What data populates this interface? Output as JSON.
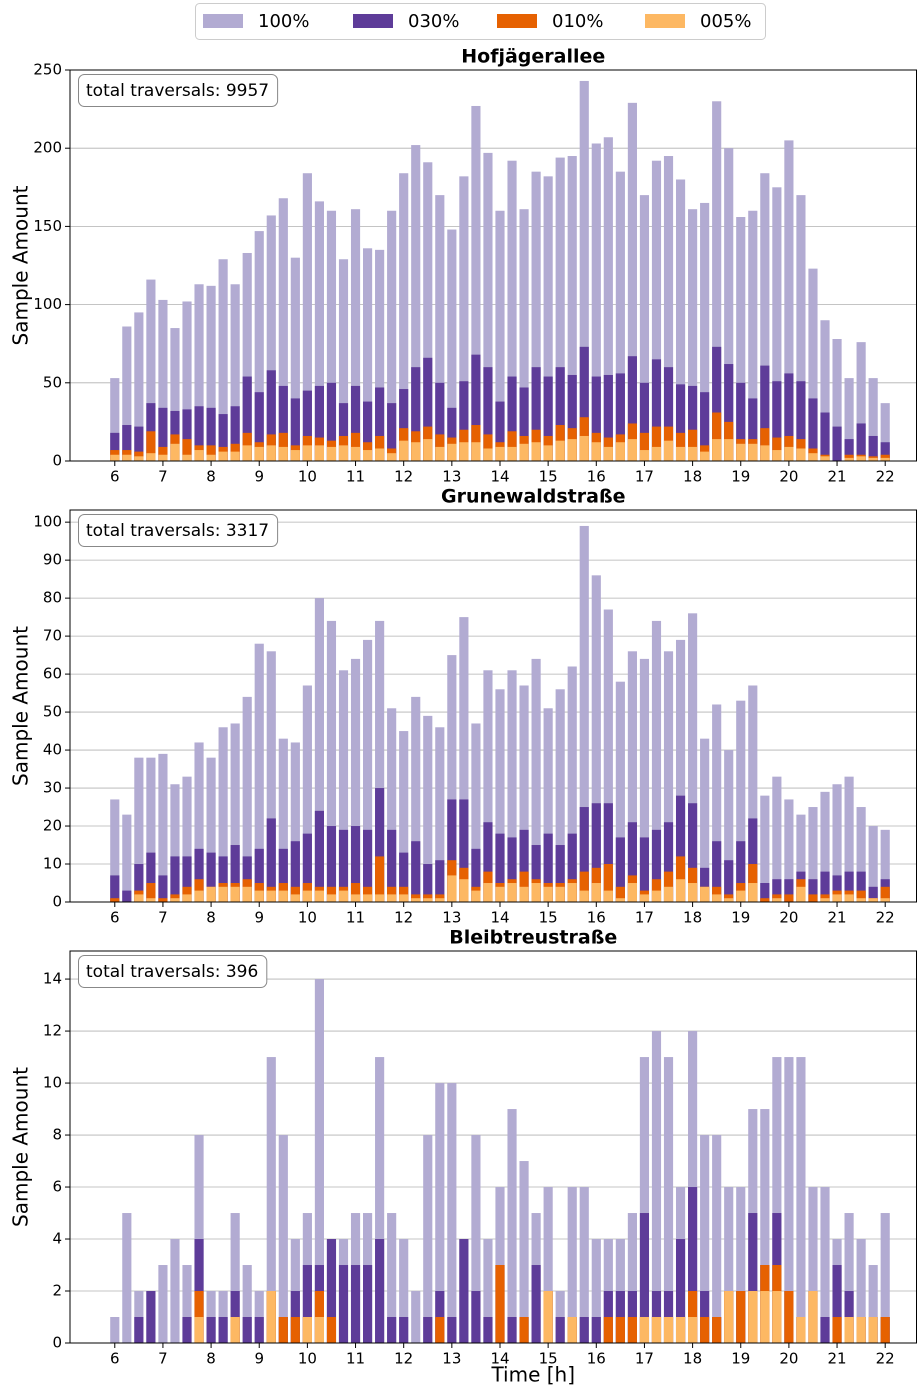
{
  "legend_loc": "upper center",
  "chart_data": [
    {
      "type": "bar",
      "title": "Hofjägerallee",
      "ylabel": "Sample Amount",
      "annotation": "total traversals: 9957",
      "x": [
        6,
        6.25,
        6.5,
        6.75,
        7,
        7.25,
        7.5,
        7.75,
        8,
        8.25,
        8.5,
        8.75,
        9,
        9.25,
        9.5,
        9.75,
        10,
        10.25,
        10.5,
        10.75,
        11,
        11.25,
        11.5,
        11.75,
        12,
        12.25,
        12.5,
        12.75,
        13,
        13.25,
        13.5,
        13.75,
        14,
        14.25,
        14.5,
        14.75,
        15,
        15.25,
        15.5,
        15.75,
        16,
        16.25,
        16.5,
        16.75,
        17,
        17.25,
        17.5,
        17.75,
        18,
        18.25,
        18.5,
        18.75,
        19,
        19.25,
        19.5,
        19.75,
        20,
        20.25,
        20.5,
        20.75,
        21,
        21.25,
        21.5,
        21.75,
        22
      ],
      "xlim": [
        5.07,
        22.65
      ],
      "xticks": [
        6,
        7,
        8,
        9,
        10,
        11,
        12,
        13,
        14,
        15,
        16,
        17,
        18,
        19,
        20,
        21,
        22
      ],
      "ylim": [
        0,
        250
      ],
      "yticks": [
        0,
        50,
        100,
        150,
        200,
        250
      ],
      "grid": true,
      "series": [
        {
          "name": "100%",
          "color": "#b2abd2",
          "values": [
            53,
            86,
            95,
            116,
            103,
            85,
            102,
            113,
            112,
            129,
            113,
            133,
            147,
            157,
            168,
            130,
            184,
            166,
            160,
            129,
            161,
            136,
            135,
            160,
            184,
            202,
            191,
            170,
            148,
            182,
            227,
            197,
            160,
            192,
            161,
            185,
            182,
            194,
            195,
            243,
            203,
            207,
            185,
            229,
            170,
            192,
            195,
            180,
            161,
            165,
            230,
            200,
            156,
            160,
            184,
            175,
            205,
            170,
            123,
            90,
            78,
            53,
            76,
            53,
            37
          ]
        },
        {
          "name": "030%",
          "color": "#5e3c99",
          "values": [
            18,
            23,
            22,
            37,
            34,
            32,
            33,
            35,
            34,
            30,
            35,
            54,
            44,
            58,
            48,
            40,
            45,
            48,
            50,
            37,
            48,
            38,
            47,
            37,
            46,
            60,
            66,
            50,
            34,
            51,
            68,
            60,
            38,
            54,
            47,
            60,
            54,
            60,
            55,
            73,
            54,
            55,
            56,
            67,
            50,
            65,
            60,
            49,
            48,
            44,
            73,
            62,
            50,
            40,
            61,
            51,
            56,
            51,
            40,
            31,
            22,
            14,
            24,
            16,
            12
          ]
        },
        {
          "name": "010%",
          "color": "#e66101",
          "values": [
            7,
            7,
            6,
            19,
            9,
            17,
            14,
            10,
            10,
            9,
            11,
            18,
            12,
            17,
            18,
            10,
            16,
            15,
            13,
            16,
            18,
            12,
            16,
            8,
            21,
            19,
            22,
            17,
            15,
            20,
            23,
            17,
            12,
            19,
            16,
            20,
            16,
            23,
            21,
            28,
            18,
            15,
            17,
            24,
            18,
            22,
            22,
            18,
            20,
            10,
            31,
            25,
            14,
            14,
            21,
            15,
            16,
            14,
            8,
            4,
            0,
            4,
            4,
            3,
            4
          ]
        },
        {
          "name": "005%",
          "color": "#fdb863",
          "values": [
            4,
            4,
            3,
            5,
            4,
            11,
            4,
            7,
            4,
            6,
            6,
            10,
            9,
            10,
            9,
            7,
            10,
            10,
            9,
            10,
            9,
            7,
            8,
            5,
            13,
            12,
            14,
            9,
            11,
            12,
            12,
            8,
            9,
            9,
            11,
            12,
            10,
            13,
            14,
            16,
            12,
            9,
            12,
            14,
            7,
            9,
            13,
            9,
            9,
            6,
            14,
            14,
            11,
            11,
            10,
            7,
            9,
            8,
            5,
            3,
            0,
            2,
            3,
            2,
            2
          ]
        }
      ]
    },
    {
      "type": "bar",
      "title": "Grunewaldstraße",
      "ylabel": "Sample Amount",
      "annotation": "total traversals: 3317",
      "x": [
        6,
        6.25,
        6.5,
        6.75,
        7,
        7.25,
        7.5,
        7.75,
        8,
        8.25,
        8.5,
        8.75,
        9,
        9.25,
        9.5,
        9.75,
        10,
        10.25,
        10.5,
        10.75,
        11,
        11.25,
        11.5,
        11.75,
        12,
        12.25,
        12.5,
        12.75,
        13,
        13.25,
        13.5,
        13.75,
        14,
        14.25,
        14.5,
        14.75,
        15,
        15.25,
        15.5,
        15.75,
        16,
        16.25,
        16.5,
        16.75,
        17,
        17.25,
        17.5,
        17.75,
        18,
        18.25,
        18.5,
        18.75,
        19,
        19.25,
        19.5,
        19.75,
        20,
        20.25,
        20.5,
        20.75,
        21,
        21.25,
        21.5,
        21.75,
        22
      ],
      "xlim": [
        5.07,
        22.65
      ],
      "xticks": [
        6,
        7,
        8,
        9,
        10,
        11,
        12,
        13,
        14,
        15,
        16,
        17,
        18,
        19,
        20,
        21,
        22
      ],
      "ylim": [
        0,
        103.2
      ],
      "yticks": [
        0,
        10,
        20,
        30,
        40,
        50,
        60,
        70,
        80,
        90,
        100
      ],
      "grid": true,
      "series": [
        {
          "color": "#b2abd2",
          "values": [
            27,
            23,
            38,
            38,
            39,
            31,
            33,
            42,
            38,
            46,
            47,
            54,
            68,
            66,
            43,
            42,
            57,
            80,
            74,
            61,
            64,
            69,
            74,
            51,
            45,
            54,
            49,
            46,
            65,
            75,
            47,
            61,
            56,
            61,
            57,
            64,
            51,
            56,
            62,
            99,
            86,
            77,
            58,
            66,
            64,
            74,
            66,
            69,
            76,
            43,
            52,
            40,
            53,
            57,
            28,
            33,
            27,
            23,
            25,
            29,
            31,
            33,
            25,
            20,
            19
          ]
        },
        {
          "color": "#5e3c99",
          "values": [
            7,
            3,
            10,
            13,
            7,
            12,
            12,
            14,
            13,
            12,
            15,
            12,
            14,
            22,
            14,
            16,
            18,
            24,
            20,
            19,
            20,
            19,
            30,
            19,
            13,
            16,
            10,
            11,
            27,
            27,
            14,
            21,
            18,
            17,
            19,
            15,
            18,
            15,
            18,
            25,
            26,
            26,
            17,
            21,
            17,
            19,
            21,
            28,
            26,
            9,
            16,
            11,
            16,
            22,
            5,
            6,
            6,
            8,
            6,
            8,
            7,
            8,
            8,
            4,
            6
          ]
        },
        {
          "color": "#e66101",
          "values": [
            1,
            0,
            3,
            5,
            1,
            2,
            4,
            6,
            4,
            5,
            5,
            6,
            5,
            4,
            5,
            4,
            5,
            4,
            4,
            4,
            5,
            4,
            12,
            4,
            4,
            2,
            2,
            2,
            11,
            9,
            4,
            8,
            5,
            6,
            8,
            6,
            5,
            5,
            6,
            8,
            9,
            10,
            4,
            7,
            3,
            6,
            8,
            12,
            9,
            4,
            4,
            2,
            5,
            10,
            1,
            2,
            2,
            6,
            2,
            2,
            3,
            3,
            3,
            1,
            4
          ]
        },
        {
          "color": "#fdb863",
          "values": [
            0,
            0,
            2,
            1,
            0,
            1,
            2,
            3,
            4,
            4,
            4,
            4,
            3,
            3,
            3,
            2,
            3,
            3,
            2,
            3,
            2,
            2,
            2,
            2,
            2,
            1,
            1,
            1,
            7,
            6,
            3,
            5,
            4,
            5,
            4,
            5,
            4,
            4,
            5,
            3,
            5,
            3,
            1,
            5,
            2,
            3,
            4,
            6,
            5,
            4,
            2,
            1,
            3,
            5,
            0,
            1,
            0,
            4,
            0,
            1,
            2,
            2,
            1,
            1,
            1
          ]
        }
      ]
    },
    {
      "type": "bar",
      "title": "Bleibtreustraße",
      "ylabel": "Sample Amount",
      "xlabel": "Time [h]",
      "annotation": "total traversals: 396",
      "x": [
        6,
        6.25,
        6.5,
        6.75,
        7,
        7.25,
        7.5,
        7.75,
        8,
        8.25,
        8.5,
        8.75,
        9,
        9.25,
        9.5,
        9.75,
        10,
        10.25,
        10.5,
        10.75,
        11,
        11.25,
        11.5,
        11.75,
        12,
        12.25,
        12.5,
        12.75,
        13,
        13.25,
        13.5,
        13.75,
        14,
        14.25,
        14.5,
        14.75,
        15,
        15.25,
        15.5,
        15.75,
        16,
        16.25,
        16.5,
        16.75,
        17,
        17.25,
        17.5,
        17.75,
        18,
        18.25,
        18.5,
        18.75,
        19,
        19.25,
        19.5,
        19.75,
        20,
        20.25,
        20.5,
        20.75,
        21,
        21.25,
        21.5,
        21.75,
        22
      ],
      "xlim": [
        5.07,
        22.65
      ],
      "xticks": [
        6,
        7,
        8,
        9,
        10,
        11,
        12,
        13,
        14,
        15,
        16,
        17,
        18,
        19,
        20,
        21,
        22
      ],
      "ylim": [
        0,
        15.08
      ],
      "yticks": [
        0,
        2,
        4,
        6,
        8,
        10,
        12,
        14
      ],
      "grid": true,
      "series": [
        {
          "color": "#b2abd2",
          "values": [
            1,
            5,
            2,
            2,
            3,
            4,
            3,
            8,
            2,
            2,
            5,
            3,
            2,
            11,
            8,
            4,
            5,
            14,
            4,
            4,
            5,
            5,
            11,
            5,
            4,
            2,
            8,
            10,
            10,
            4,
            8,
            4,
            6,
            9,
            7,
            5,
            6,
            2,
            6,
            6,
            4,
            4,
            4,
            5,
            11,
            12,
            11,
            6,
            12,
            8,
            8,
            6,
            6,
            9,
            9,
            11,
            11,
            11,
            6,
            6,
            4,
            5,
            4,
            3,
            5
          ]
        },
        {
          "color": "#5e3c99",
          "values": [
            0,
            0,
            1,
            2,
            0,
            0,
            1,
            4,
            1,
            1,
            2,
            1,
            1,
            2,
            1,
            2,
            3,
            3,
            4,
            3,
            3,
            3,
            4,
            1,
            1,
            0,
            1,
            2,
            1,
            4,
            2,
            1,
            3,
            1,
            1,
            3,
            2,
            1,
            1,
            1,
            1,
            2,
            2,
            2,
            5,
            2,
            2,
            4,
            6,
            2,
            1,
            2,
            2,
            5,
            3,
            5,
            2,
            1,
            2,
            1,
            3,
            2,
            1,
            1,
            1
          ]
        },
        {
          "color": "#e66101",
          "values": [
            0,
            0,
            0,
            0,
            0,
            0,
            0,
            2,
            0,
            0,
            1,
            0,
            0,
            2,
            1,
            1,
            1,
            2,
            1,
            0,
            0,
            0,
            0,
            0,
            0,
            0,
            0,
            1,
            0,
            0,
            0,
            0,
            3,
            0,
            1,
            0,
            2,
            0,
            1,
            0,
            0,
            1,
            1,
            1,
            1,
            1,
            1,
            1,
            2,
            1,
            1,
            2,
            2,
            2,
            3,
            3,
            2,
            1,
            2,
            0,
            1,
            1,
            1,
            0,
            1
          ]
        },
        {
          "color": "#fdb863",
          "values": [
            0,
            0,
            0,
            0,
            0,
            0,
            0,
            1,
            0,
            0,
            1,
            0,
            0,
            2,
            0,
            0,
            1,
            1,
            0,
            0,
            0,
            0,
            0,
            0,
            0,
            0,
            0,
            0,
            0,
            0,
            0,
            0,
            0,
            0,
            0,
            0,
            2,
            0,
            1,
            0,
            0,
            0,
            0,
            0,
            1,
            1,
            1,
            1,
            1,
            0,
            0,
            2,
            0,
            2,
            2,
            2,
            0,
            1,
            2,
            0,
            0,
            1,
            1,
            1,
            0
          ]
        }
      ]
    }
  ]
}
